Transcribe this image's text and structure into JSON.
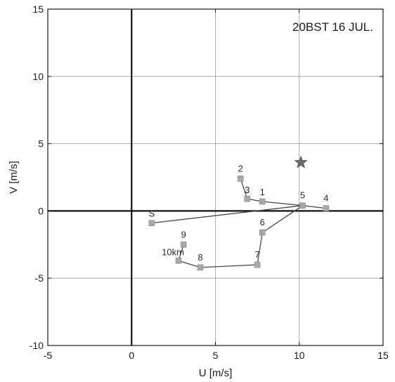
{
  "chart_data": {
    "type": "line",
    "title": "20BST 16 JUL.",
    "xlabel": "U [m/s]",
    "ylabel": "V [m/s]",
    "xlim": [
      -5,
      15
    ],
    "ylim": [
      -10,
      15
    ],
    "xticks": [
      -5,
      0,
      5,
      10,
      15
    ],
    "yticks": [
      -10,
      -5,
      0,
      5,
      10,
      15
    ],
    "grid": true,
    "legend": "none",
    "colors": {
      "axis": "#1a1a1a",
      "grid": "#9a9a9a",
      "zero_line": "#111111",
      "line": "#4a4a4a",
      "marker": "#a8a8a8",
      "star": "#6a6a6a"
    },
    "series": [
      {
        "points": [
          {
            "label": "S",
            "x": 1.2,
            "y": -0.9
          },
          {
            "label": "5",
            "x": 10.2,
            "y": 0.4
          },
          {
            "label": "4",
            "x": 11.6,
            "y": 0.2
          },
          {
            "label": "1",
            "x": 7.8,
            "y": 0.7
          },
          {
            "label": "3",
            "x": 6.9,
            "y": 0.9
          },
          {
            "label": "2",
            "x": 6.5,
            "y": 2.4
          },
          {
            "label": "6",
            "x": 7.8,
            "y": -1.6
          },
          {
            "label": "7",
            "x": 7.5,
            "y": -4.0
          },
          {
            "label": "8",
            "x": 4.1,
            "y": -4.2
          },
          {
            "label": "10km",
            "x": 2.8,
            "y": -3.7
          },
          {
            "label": "9",
            "x": 3.1,
            "y": -2.5
          }
        ]
      }
    ],
    "line_path": [
      "S",
      "5",
      "1",
      "3",
      "2"
    ],
    "line_path_2": [
      "4",
      "5",
      "6",
      "7",
      "8",
      "10km",
      "9"
    ],
    "marker_star": {
      "x": 10.1,
      "y": 3.6
    }
  }
}
